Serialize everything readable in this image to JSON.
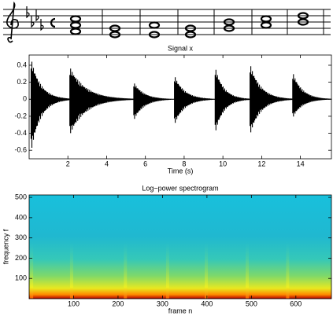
{
  "chart_data": [
    {
      "type": "waveform",
      "title": "Signal x",
      "x_label": "Time (s)",
      "onsets": [
        0.1,
        2.1,
        5.4,
        7.5,
        9.6,
        11.4,
        13.6
      ],
      "peaks": [
        0.48,
        0.38,
        0.2,
        0.28,
        0.38,
        0.42,
        0.32
      ],
      "troughs": [
        -0.62,
        -0.42,
        -0.25,
        -0.3,
        -0.4,
        -0.42,
        -0.22
      ],
      "color": "#000000",
      "xlim": [
        0,
        15.6
      ],
      "ylim": [
        -0.7,
        0.52
      ],
      "xticks": [
        2,
        4,
        6,
        8,
        10,
        12,
        14
      ],
      "yticks": [
        -0.6,
        -0.4,
        -0.2,
        0,
        0.2,
        0.4
      ]
    },
    {
      "type": "spectrogram",
      "title": "Log−power spectrogram",
      "x_label": "frame n",
      "y_label": "frequency f",
      "onsets": [
        2,
        92,
        213,
        308,
        395,
        487,
        578
      ],
      "xlim": [
        0,
        680
      ],
      "ylim": [
        0,
        512
      ],
      "xticks": [
        100,
        200,
        300,
        400,
        500,
        600
      ],
      "yticks": [
        100,
        200,
        300,
        400,
        500
      ]
    }
  ]
}
